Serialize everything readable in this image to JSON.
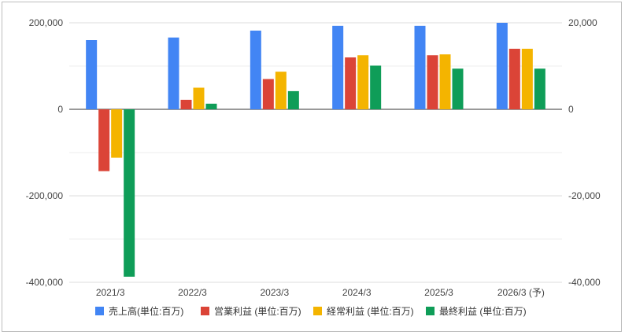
{
  "chart_data": {
    "type": "bar",
    "categories": [
      "2021/3",
      "2022/3",
      "2023/3",
      "2024/3",
      "2025/3",
      "2026/3 (予)"
    ],
    "series": [
      {
        "name": "売上高(単位:百万)",
        "axis": "left",
        "color": "#4285f4",
        "values": [
          160000,
          166000,
          182000,
          193000,
          193000,
          200000
        ]
      },
      {
        "name": "営業利益 (単位:百万)",
        "axis": "right",
        "color": "#db4437",
        "values": [
          -14300,
          2200,
          7000,
          12000,
          12500,
          14000
        ]
      },
      {
        "name": "経常利益 (単位:百万)",
        "axis": "right",
        "color": "#f4b400",
        "values": [
          -11200,
          5000,
          8700,
          12500,
          12700,
          14000
        ]
      },
      {
        "name": "最終利益 (単位:百万)",
        "axis": "right",
        "color": "#0f9d58",
        "values": [
          -38700,
          1300,
          4200,
          10100,
          9400,
          9400
        ]
      }
    ],
    "left_axis": {
      "ylim": [
        -400000,
        200000
      ],
      "ticks": [
        "200,000",
        "0",
        "-200,000",
        "-400,000"
      ]
    },
    "right_axis": {
      "ylim": [
        -40000,
        20000
      ],
      "ticks": [
        "20,000",
        "0",
        "-20,000",
        "-40,000"
      ]
    },
    "grid": true,
    "legend_position": "bottom"
  }
}
